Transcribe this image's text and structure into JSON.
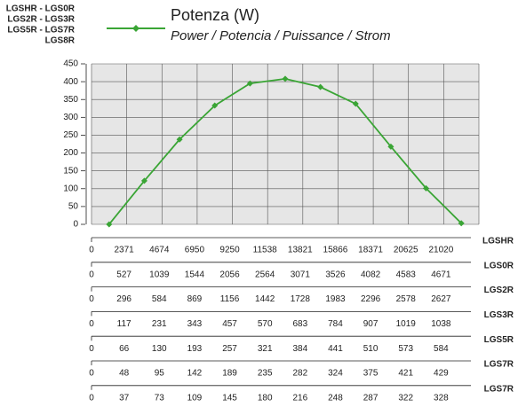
{
  "chart_data": {
    "type": "line",
    "title": "Potenza (W)",
    "subtitle": "Power / Potencia / Puissance / Strom",
    "ylabel": [
      "LGSHR - LGS0R",
      "LGS2R - LGS3R",
      "LGS5R - LGS7R",
      "LGS8R"
    ],
    "categories": [
      null,
      null,
      null,
      null,
      null,
      null,
      null,
      null,
      null,
      null,
      null
    ],
    "series": [
      {
        "name": "Potenza (W)",
        "color": "#3aa535",
        "values": [
          0,
          122,
          238,
          333,
          395,
          408,
          385,
          338,
          218,
          101,
          3
        ]
      }
    ],
    "ylim": [
      0,
      450
    ],
    "yticks": [
      0,
      50,
      100,
      150,
      200,
      250,
      300,
      350,
      400,
      450
    ],
    "grid": true,
    "background": "#e6e6e6",
    "scales": [
      {
        "name": "LGSHR",
        "ticks": [
          0,
          2371,
          4674,
          6950,
          9250,
          11538,
          13821,
          15866,
          18371,
          20625,
          21020
        ]
      },
      {
        "name": "LGS0R",
        "ticks": [
          0,
          527,
          1039,
          1544,
          2056,
          2564,
          3071,
          3526,
          4082,
          4583,
          4671
        ]
      },
      {
        "name": "LGS2R",
        "ticks": [
          0,
          296,
          584,
          869,
          1156,
          1442,
          1728,
          1983,
          2296,
          2578,
          2627
        ]
      },
      {
        "name": "LGS3R",
        "ticks": [
          0,
          117,
          231,
          343,
          457,
          570,
          683,
          784,
          907,
          1019,
          1038
        ]
      },
      {
        "name": "LGS5R",
        "ticks": [
          0,
          66,
          130,
          193,
          257,
          321,
          384,
          441,
          510,
          573,
          584
        ]
      },
      {
        "name": "LGS7R",
        "ticks": [
          0,
          48,
          95,
          142,
          189,
          235,
          282,
          324,
          375,
          421,
          429
        ]
      },
      {
        "name": "LGS7R",
        "ticks": [
          0,
          37,
          73,
          109,
          145,
          180,
          216,
          248,
          287,
          322,
          328
        ]
      }
    ]
  }
}
